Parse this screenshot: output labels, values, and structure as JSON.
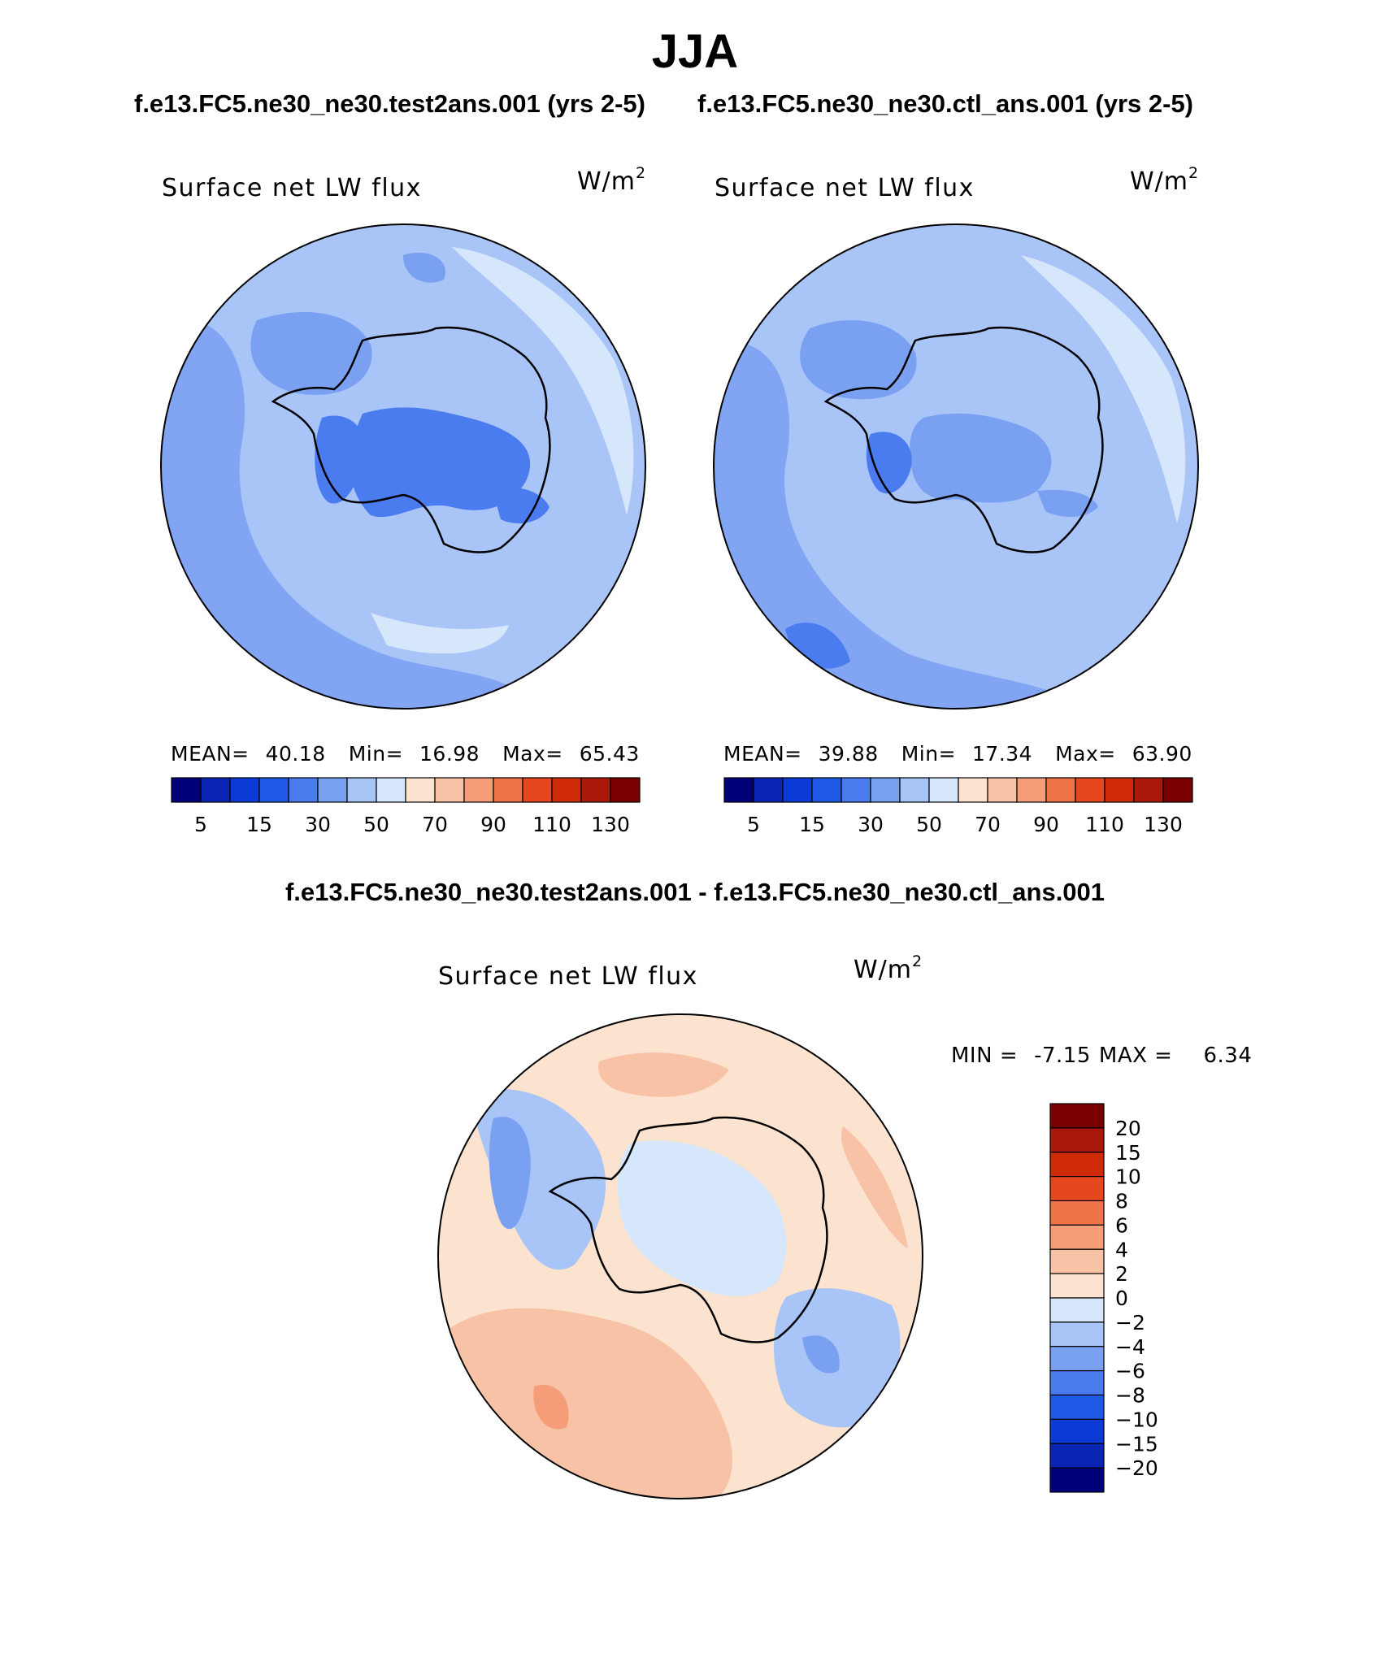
{
  "figure": {
    "season_title": "JJA",
    "case_test": "f.e13.FC5.ne30_ne30.test2ans.001 (yrs 2-5)",
    "case_control": "f.e13.FC5.ne30_ne30.ctl_ans.001 (yrs 2-5)",
    "diff_title": "f.e13.FC5.ne30_ne30.test2ans.001 - f.e13.FC5.ne30_ne30.ctl_ans.001"
  },
  "panels": [
    {
      "variable": "Surface net LW flux",
      "units": "W/m",
      "units_power": "2",
      "mean_label": "MEAN=",
      "mean": "40.18",
      "min_label": "Min=",
      "min": "16.98",
      "max_label": "Max=",
      "max": "65.43"
    },
    {
      "variable": "Surface net LW flux",
      "units": "W/m",
      "units_power": "2",
      "mean_label": "MEAN=",
      "mean": "39.88",
      "min_label": "Min=",
      "min": "17.34",
      "max_label": "Max=",
      "max": "63.90"
    }
  ],
  "diff_panel": {
    "variable": "Surface net LW flux",
    "units": "W/m",
    "units_power": "2",
    "min_label": "MIN =",
    "min": "-7.15",
    "max_label": "MAX =",
    "max": "6.34"
  },
  "chart_data": [
    {
      "type": "colorbar",
      "orientation": "horizontal",
      "tick_labels": [
        "5",
        "15",
        "30",
        "50",
        "70",
        "90",
        "110",
        "130"
      ],
      "colors": [
        "#00007a",
        "#0a24b4",
        "#0c3ad6",
        "#1f5ae6",
        "#4a7cf0",
        "#7aa0f2",
        "#a9c4f7",
        "#d6e6fb",
        "#fbe3cf",
        "#f8c2a6",
        "#f49d78",
        "#ef7448",
        "#e6471e",
        "#cf2b08",
        "#a91808",
        "#780000"
      ]
    },
    {
      "type": "colorbar",
      "orientation": "vertical",
      "tick_labels": [
        "20",
        "15",
        "10",
        "8",
        "6",
        "4",
        "2",
        "0",
        "−2",
        "−4",
        "−6",
        "−8",
        "−10",
        "−15",
        "−20"
      ],
      "colors": [
        "#780000",
        "#a91808",
        "#cf2b08",
        "#e6471e",
        "#ef7448",
        "#f49d78",
        "#f8c2a6",
        "#fbe3cf",
        "#d6e6fb",
        "#a9c4f7",
        "#7aa0f2",
        "#4a7cf0",
        "#1f5ae6",
        "#0c3ad6",
        "#0a24b4",
        "#00007a"
      ]
    }
  ]
}
